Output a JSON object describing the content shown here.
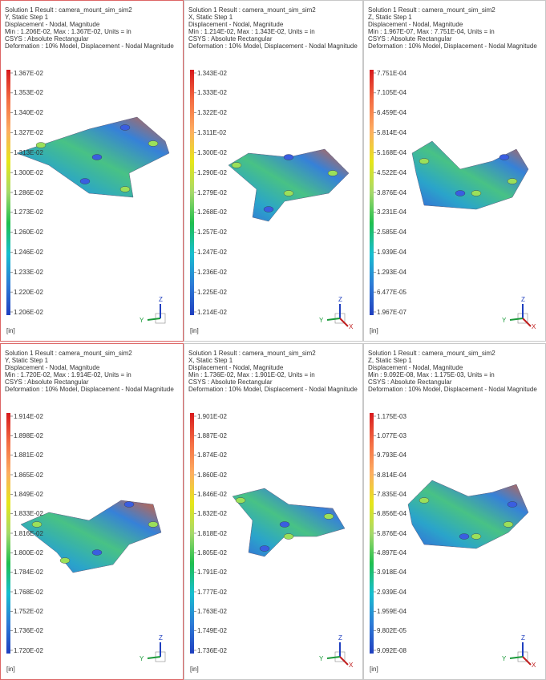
{
  "panels": [
    {
      "header": [
        "Solution 1 Result : camera_mount_sim_sim2",
        "Y, Static Step 1",
        "Displacement - Nodal, Magnitude",
        "Min : 1.206E-02, Max : 1.367E-02, Units = in",
        "CSYS : Absolute Rectangular",
        "Deformation : 10% Model, Displacement - Nodal Magnitude"
      ],
      "legend": [
        "1.367E-02",
        "1.353E-02",
        "1.340E-02",
        "1.327E-02",
        "1.313E-02",
        "1.300E-02",
        "1.286E-02",
        "1.273E-02",
        "1.260E-02",
        "1.246E-02",
        "1.233E-02",
        "1.220E-02",
        "1.206E-02"
      ],
      "units": "[in]",
      "triad": [
        "Z",
        "Y"
      ]
    },
    {
      "header": [
        "Solution 1 Result : camera_mount_sim_sim2",
        "X, Static Step 1",
        "Displacement - Nodal, Magnitude",
        "Min : 1.214E-02, Max : 1.343E-02, Units = in",
        "CSYS : Absolute Rectangular",
        "Deformation : 10% Model, Displacement - Nodal Magnitude"
      ],
      "legend": [
        "1.343E-02",
        "1.333E-02",
        "1.322E-02",
        "1.311E-02",
        "1.300E-02",
        "1.290E-02",
        "1.279E-02",
        "1.268E-02",
        "1.257E-02",
        "1.247E-02",
        "1.236E-02",
        "1.225E-02",
        "1.214E-02"
      ],
      "units": "[in]",
      "triad": [
        "Z",
        "Y",
        "X"
      ]
    },
    {
      "header": [
        "Solution 1 Result : camera_mount_sim_sim2",
        "Z, Static Step 1",
        "Displacement - Nodal, Magnitude",
        "Min : 1.967E-07, Max : 7.751E-04, Units = in",
        "CSYS : Absolute Rectangular",
        "Deformation : 10% Model, Displacement - Nodal Magnitude"
      ],
      "legend": [
        "7.751E-04",
        "7.105E-04",
        "6.459E-04",
        "5.814E-04",
        "5.168E-04",
        "4.522E-04",
        "3.876E-04",
        "3.231E-04",
        "2.585E-04",
        "1.939E-04",
        "1.293E-04",
        "6.477E-05",
        "1.967E-07"
      ],
      "units": "[in]",
      "triad": [
        "Z",
        "Y",
        "X"
      ]
    },
    {
      "header": [
        "Solution 1 Result : camera_mount_sim_sim2",
        "Y, Static Step 1",
        "Displacement - Nodal, Magnitude",
        "Min : 1.720E-02, Max : 1.914E-02, Units = in",
        "CSYS : Absolute Rectangular",
        "Deformation : 10% Model, Displacement - Nodal Magnitude"
      ],
      "legend": [
        "1.914E-02",
        "1.898E-02",
        "1.881E-02",
        "1.865E-02",
        "1.849E-02",
        "1.833E-02",
        "1.816E-02",
        "1.800E-02",
        "1.784E-02",
        "1.768E-02",
        "1.752E-02",
        "1.736E-02",
        "1.720E-02"
      ],
      "units": "[in]",
      "triad": [
        "Z",
        "Y"
      ]
    },
    {
      "header": [
        "Solution 1 Result : camera_mount_sim_sim2",
        "X, Static Step 1",
        "Displacement - Nodal, Magnitude",
        "Min : 1.736E-02, Max : 1.901E-02, Units = in",
        "CSYS : Absolute Rectangular",
        "Deformation : 10% Model, Displacement - Nodal Magnitude"
      ],
      "legend": [
        "1.901E-02",
        "1.887E-02",
        "1.874E-02",
        "1.860E-02",
        "1.846E-02",
        "1.832E-02",
        "1.818E-02",
        "1.805E-02",
        "1.791E-02",
        "1.777E-02",
        "1.763E-02",
        "1.749E-02",
        "1.736E-02"
      ],
      "units": "[in]",
      "triad": [
        "Z",
        "Y",
        "X"
      ]
    },
    {
      "header": [
        "Solution 1 Result : camera_mount_sim_sim2",
        "Z, Static Step 1",
        "Displacement - Nodal, Magnitude",
        "Min : 9.092E-08, Max : 1.175E-03, Units = in",
        "CSYS : Absolute Rectangular",
        "Deformation : 10% Model, Displacement - Nodal Magnitude"
      ],
      "legend": [
        "1.175E-03",
        "1.077E-03",
        "9.793E-04",
        "8.814E-04",
        "7.835E-04",
        "6.856E-04",
        "5.876E-04",
        "4.897E-04",
        "3.918E-04",
        "2.939E-04",
        "1.959E-04",
        "9.802E-05",
        "9.092E-08"
      ],
      "units": "[in]",
      "triad": [
        "Z",
        "Y",
        "X"
      ]
    }
  ]
}
